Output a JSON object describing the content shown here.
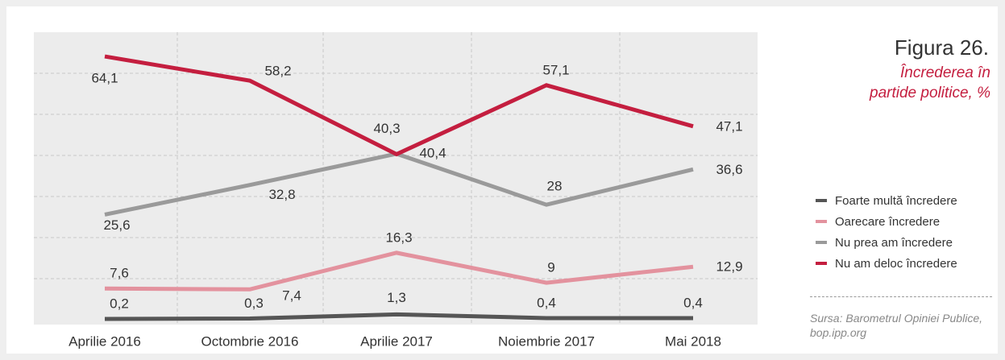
{
  "chart_data": {
    "type": "line",
    "title": "Figura 26.",
    "subtitle": "Încrederea în partide politice, %",
    "source_label": "Sursa:",
    "source": "Barometrul Opiniei Publice, bop.ipp.org",
    "categories": [
      "Aprilie 2016",
      "Octombrie 2016",
      "Aprilie 2017",
      "Noiembrie 2017",
      "Mai 2018"
    ],
    "ylim": [
      0,
      70
    ],
    "yticks": [
      10,
      20,
      30,
      40,
      50,
      60
    ],
    "grid": true,
    "series": [
      {
        "name": "Foarte multă încredere",
        "color": "#555555",
        "values": [
          0.2,
          0.3,
          1.3,
          0.4,
          0.4
        ],
        "value_labels": [
          "0,2",
          "0,3",
          "1,3",
          "0,4",
          "0,4"
        ]
      },
      {
        "name": "Oarecare încredere",
        "color": "#e3929e",
        "values": [
          7.6,
          7.4,
          16.3,
          9,
          12.9
        ],
        "value_labels": [
          "7,6",
          "7,4",
          "16,3",
          "9",
          "12,9"
        ]
      },
      {
        "name": "Nu prea am încredere",
        "color": "#9a9a9a",
        "values": [
          25.6,
          32.8,
          40.4,
          28,
          36.6
        ],
        "value_labels": [
          "25,6",
          "32,8",
          "40,4",
          "28",
          "36,6"
        ]
      },
      {
        "name": "Nu am deloc încredere",
        "color": "#c41e3f",
        "values": [
          64.1,
          58.2,
          40.3,
          57.1,
          47.1
        ],
        "value_labels": [
          "64,1",
          "58,2",
          "40,3",
          "57,1",
          "47,1"
        ]
      }
    ]
  }
}
